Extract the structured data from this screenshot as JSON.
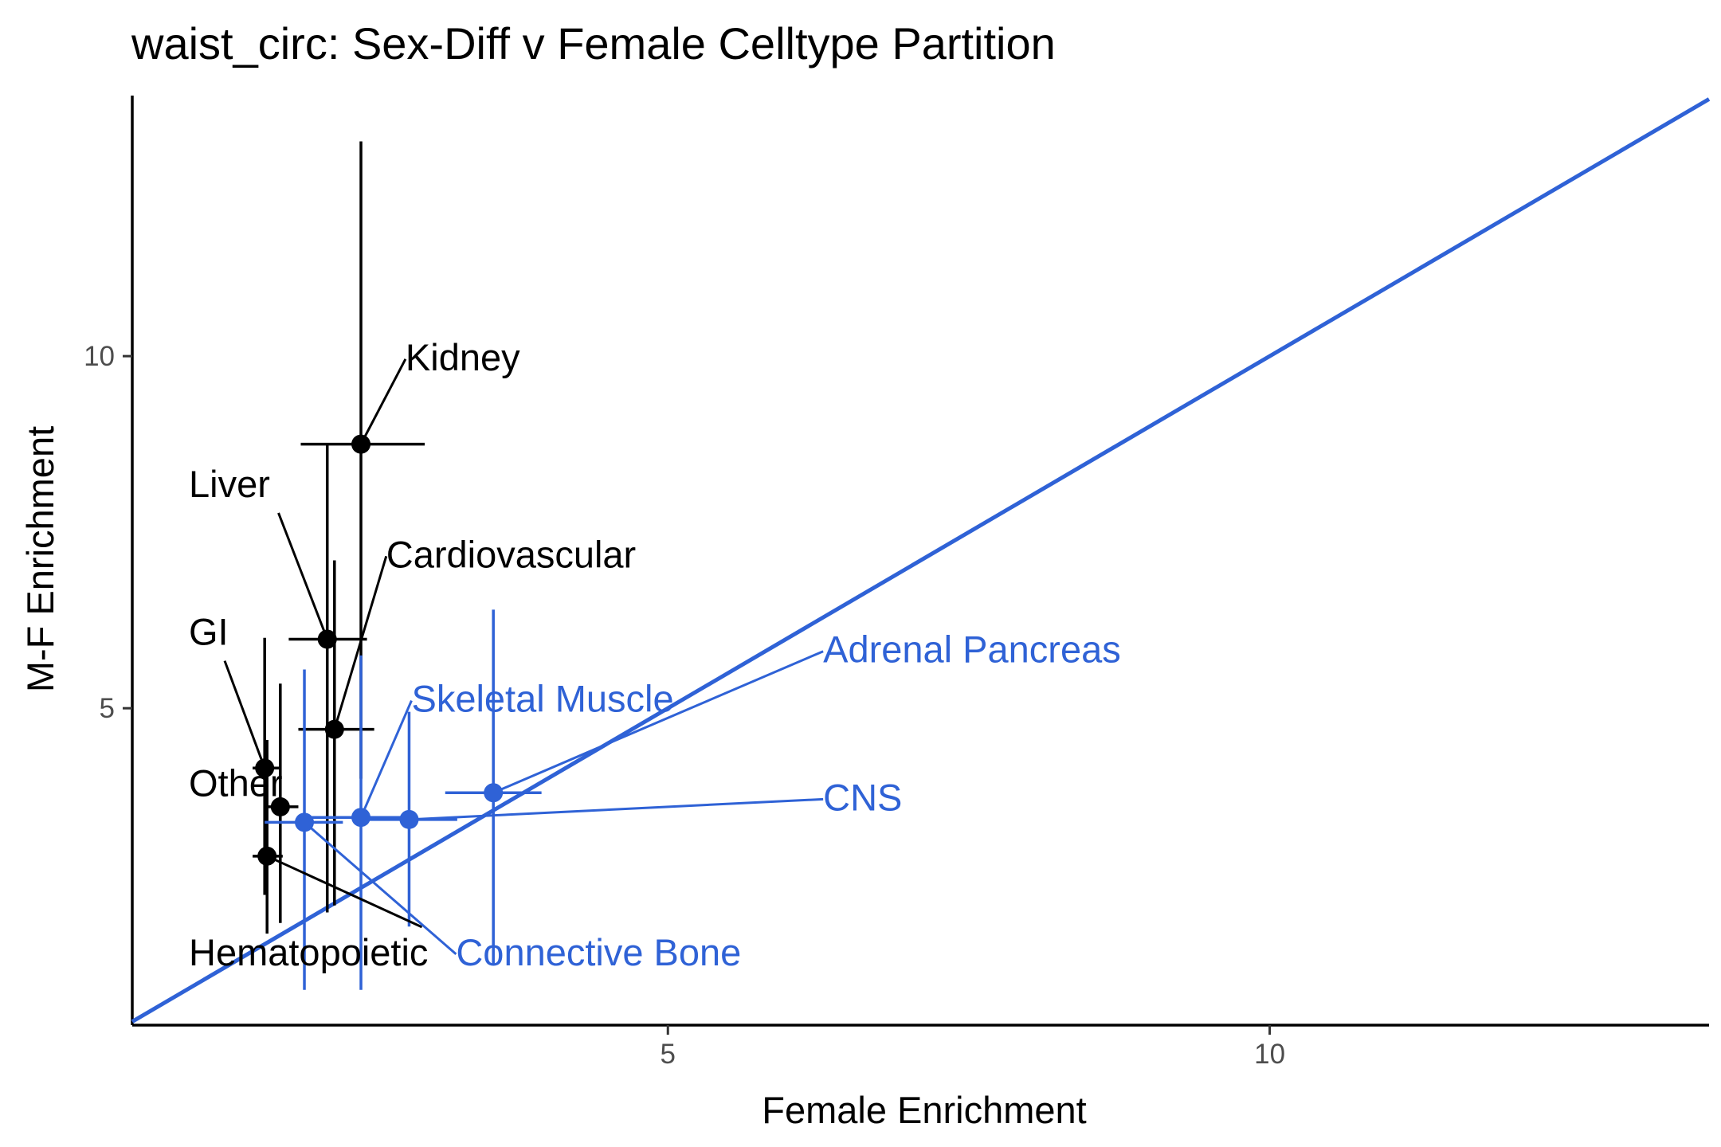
{
  "chart_data": {
    "type": "scatter",
    "title": "waist_circ: Sex-Diff v Female Celltype Partition",
    "xlabel": "Female Enrichment",
    "ylabel": "M-F Enrichment",
    "xlim": [
      0.55,
      13.65
    ],
    "ylim": [
      0.5,
      13.7
    ],
    "x_ticks": [
      5,
      10
    ],
    "y_ticks": [
      5,
      10
    ],
    "grid": false,
    "reference_line": {
      "type": "identity",
      "label": "y = x",
      "color": "#2f62d6"
    },
    "colors": {
      "black": "#000000",
      "blue": "#2f62d6"
    },
    "series": [
      {
        "name": "",
        "color": "#000000",
        "points": [
          {
            "label": "Kidney",
            "x": 2.45,
            "y": 8.75,
            "x_err": [
              1.95,
              2.98
            ],
            "y_err": [
              4.0,
              13.05
            ],
            "label_x": 2.82,
            "label_y": 9.8
          },
          {
            "label": "Liver",
            "x": 2.17,
            "y": 5.98,
            "x_err": [
              1.85,
              2.5
            ],
            "y_err": [
              2.1,
              8.75
            ],
            "label_x": 1.02,
            "label_y": 8.0
          },
          {
            "label": "Cardiovascular",
            "x": 2.23,
            "y": 4.7,
            "x_err": [
              1.93,
              2.56
            ],
            "y_err": [
              2.2,
              7.1
            ],
            "label_x": 2.66,
            "label_y": 7.0
          },
          {
            "label": "GI",
            "x": 1.65,
            "y": 4.15,
            "x_err": [
              1.55,
              1.77
            ],
            "y_err": [
              2.35,
              6.0
            ],
            "label_x": 1.02,
            "label_y": 5.9
          },
          {
            "label": "Other",
            "x": 1.78,
            "y": 3.6,
            "x_err": [
              1.65,
              1.93
            ],
            "y_err": [
              1.95,
              5.35
            ],
            "label_x": 1.02,
            "label_y": 3.75
          },
          {
            "label": "Hematopoietic",
            "x": 1.67,
            "y": 2.9,
            "x_err": [
              1.55,
              1.8
            ],
            "y_err": [
              1.8,
              4.55
            ],
            "label_x": 1.02,
            "label_y": 1.35
          }
        ]
      },
      {
        "name": "",
        "color": "#2f62d6",
        "points": [
          {
            "label": "Adrenal Pancreas",
            "x": 3.55,
            "y": 3.8,
            "x_err": [
              3.15,
              3.95
            ],
            "y_err": [
              1.35,
              6.4
            ],
            "label_x": 6.29,
            "label_y": 5.65
          },
          {
            "label": "Skeletal Muscle",
            "x": 2.45,
            "y": 3.45,
            "x_err": [
              2.0,
              2.9
            ],
            "y_err": [
              1.0,
              5.75
            ],
            "label_x": 2.87,
            "label_y": 4.95
          },
          {
            "label": "CNS",
            "x": 2.85,
            "y": 3.42,
            "x_err": [
              2.45,
              3.25
            ],
            "y_err": [
              1.9,
              4.95
            ],
            "label_x": 6.29,
            "label_y": 3.55
          },
          {
            "label": "Connective Bone",
            "x": 1.98,
            "y": 3.38,
            "x_err": [
              1.65,
              2.3
            ],
            "y_err": [
              1.0,
              5.55
            ],
            "label_x": 3.24,
            "label_y": 1.35
          }
        ]
      }
    ]
  }
}
